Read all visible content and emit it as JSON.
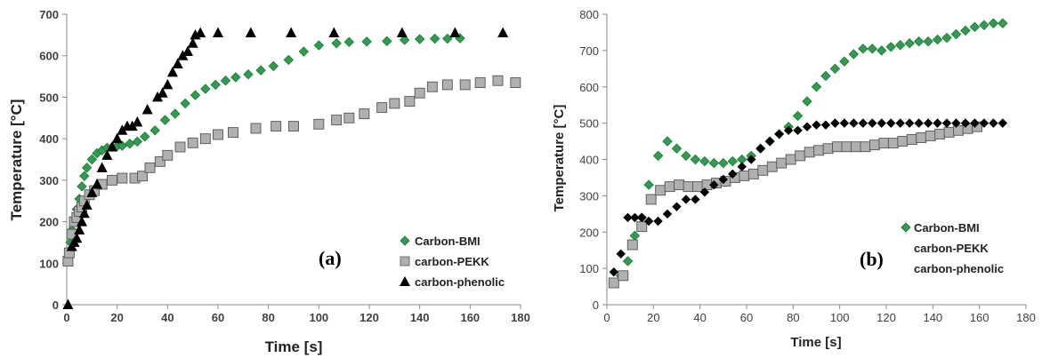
{
  "colors": {
    "bmi": "#2e9e4e",
    "pekk_fill": "#b0b0b0",
    "pekk_stroke": "#555555",
    "black": "#000000",
    "axis": "#888888"
  },
  "chart_data": [
    {
      "type": "scatter",
      "panel_label": "(a)",
      "xlabel": "Time [s]",
      "ylabel": "Temperature [°C]",
      "xlim": [
        0,
        180
      ],
      "ylim": [
        0,
        700
      ],
      "xticks": [
        0,
        20,
        40,
        60,
        80,
        100,
        120,
        140,
        160,
        180
      ],
      "yticks": [
        0,
        100,
        200,
        300,
        400,
        500,
        600,
        700
      ],
      "grid": false,
      "legend_position": "bottom-right",
      "series": [
        {
          "name": "Carbon-BMI",
          "marker": "diamond",
          "color": "bmi",
          "x": [
            0.5,
            1,
            1.5,
            2,
            3,
            4,
            5,
            6,
            7,
            8,
            10,
            12,
            14,
            16,
            18,
            20,
            22,
            25,
            28,
            31,
            35,
            39,
            43,
            47,
            51,
            55,
            59,
            63,
            67,
            72,
            77,
            82,
            88,
            94,
            100,
            107,
            112,
            119,
            127,
            134,
            140,
            146,
            151,
            156
          ],
          "y": [
            110,
            130,
            150,
            180,
            200,
            230,
            255,
            285,
            310,
            330,
            350,
            365,
            372,
            378,
            380,
            382,
            383,
            388,
            393,
            405,
            420,
            445,
            460,
            485,
            505,
            520,
            530,
            540,
            548,
            555,
            565,
            575,
            590,
            610,
            625,
            630,
            633,
            634,
            635,
            638,
            640,
            641,
            641,
            642
          ]
        },
        {
          "name": "carbon-PEKK",
          "marker": "square",
          "color": "pekk",
          "x": [
            0.5,
            1,
            2,
            3,
            4,
            5,
            6,
            7,
            9,
            11,
            14,
            18,
            22,
            27,
            30,
            33,
            37,
            40,
            45,
            50,
            55,
            60,
            66,
            75,
            83,
            90,
            100,
            107,
            112,
            118,
            125,
            130,
            136,
            140,
            145,
            151,
            158,
            164,
            171,
            178
          ],
          "y": [
            105,
            125,
            170,
            200,
            210,
            225,
            235,
            250,
            265,
            275,
            290,
            300,
            305,
            305,
            310,
            330,
            345,
            360,
            380,
            390,
            400,
            410,
            415,
            425,
            430,
            430,
            435,
            445,
            450,
            460,
            475,
            485,
            490,
            510,
            525,
            530,
            530,
            535,
            540,
            535
          ]
        },
        {
          "name": "carbon-phenolic",
          "marker": "triangle",
          "color": "black",
          "x": [
            0.5,
            2,
            3,
            4,
            5,
            6,
            7,
            8,
            10,
            12,
            14,
            16,
            18,
            20,
            22,
            24,
            26,
            28,
            32,
            36,
            38,
            40,
            42,
            44,
            46,
            48,
            50,
            51,
            53,
            60,
            73,
            89,
            106,
            133,
            154,
            173
          ],
          "y": [
            0,
            140,
            150,
            160,
            180,
            200,
            220,
            240,
            270,
            290,
            330,
            360,
            380,
            400,
            420,
            430,
            430,
            440,
            470,
            500,
            510,
            530,
            560,
            580,
            600,
            610,
            630,
            650,
            655,
            655,
            655,
            655,
            655,
            655,
            655,
            655
          ]
        }
      ]
    },
    {
      "type": "scatter",
      "panel_label": "(b)",
      "xlabel": "Time [s]",
      "ylabel": "Temperature [°C]",
      "xlim": [
        0,
        180
      ],
      "ylim": [
        0,
        800
      ],
      "xticks": [
        0,
        20,
        40,
        60,
        80,
        100,
        120,
        140,
        160,
        180
      ],
      "yticks": [
        0,
        100,
        200,
        300,
        400,
        500,
        600,
        700,
        800
      ],
      "grid": false,
      "legend_position": "bottom-right",
      "series": [
        {
          "name": "Carbon-BMI",
          "marker": "diamond",
          "color": "bmi",
          "x": [
            3,
            6,
            9,
            12,
            15,
            18,
            22,
            26,
            30,
            34,
            38,
            42,
            46,
            50,
            54,
            58,
            62,
            66,
            70,
            74,
            78,
            82,
            86,
            90,
            94,
            98,
            102,
            106,
            110,
            114,
            118,
            122,
            126,
            130,
            134,
            138,
            142,
            146,
            150,
            154,
            158,
            162,
            166,
            170
          ],
          "y": [
            60,
            80,
            120,
            190,
            240,
            330,
            410,
            450,
            430,
            410,
            400,
            395,
            390,
            390,
            395,
            400,
            410,
            430,
            450,
            470,
            490,
            520,
            560,
            600,
            630,
            650,
            670,
            690,
            705,
            705,
            700,
            710,
            715,
            720,
            725,
            725,
            730,
            735,
            745,
            755,
            765,
            770,
            775,
            775
          ]
        },
        {
          "name": "carbon-PEKK",
          "marker": "square",
          "color": "pekk",
          "x": [
            3,
            7,
            11,
            15,
            19,
            23,
            27,
            31,
            35,
            39,
            43,
            47,
            51,
            55,
            59,
            63,
            67,
            71,
            75,
            79,
            83,
            87,
            91,
            95,
            99,
            103,
            107,
            111,
            115,
            119,
            123,
            127,
            131,
            135,
            139,
            143,
            147,
            151,
            155,
            159
          ],
          "y": [
            60,
            80,
            165,
            215,
            290,
            315,
            325,
            330,
            325,
            325,
            330,
            335,
            340,
            350,
            355,
            360,
            370,
            380,
            390,
            400,
            410,
            420,
            425,
            430,
            435,
            435,
            435,
            435,
            440,
            445,
            445,
            450,
            455,
            460,
            465,
            470,
            475,
            480,
            485,
            490
          ]
        },
        {
          "name": "carbon-phenolic",
          "marker": "diamond",
          "color": "black",
          "x": [
            3,
            6,
            9,
            12,
            15,
            18,
            22,
            26,
            30,
            34,
            38,
            42,
            46,
            50,
            54,
            58,
            62,
            66,
            70,
            74,
            78,
            82,
            86,
            90,
            94,
            98,
            102,
            106,
            110,
            114,
            118,
            122,
            126,
            130,
            134,
            138,
            142,
            146,
            150,
            154,
            158,
            162,
            166,
            170
          ],
          "y": [
            90,
            140,
            240,
            240,
            240,
            230,
            230,
            250,
            270,
            290,
            290,
            310,
            330,
            345,
            360,
            380,
            400,
            430,
            450,
            470,
            480,
            480,
            490,
            495,
            495,
            500,
            500,
            500,
            500,
            500,
            500,
            500,
            500,
            500,
            500,
            500,
            500,
            500,
            500,
            500,
            500,
            500,
            500,
            500
          ]
        }
      ]
    }
  ]
}
